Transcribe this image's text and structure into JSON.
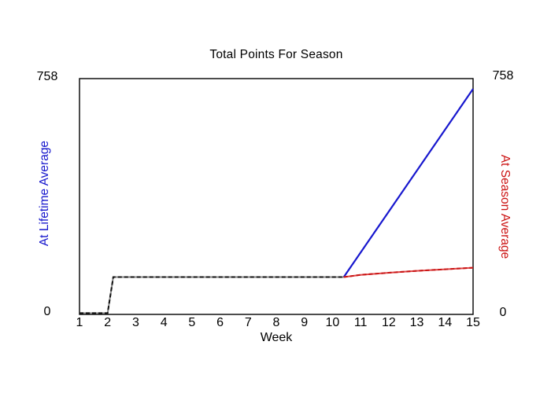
{
  "header": {
    "title": "Total Points For Season"
  },
  "axes": {
    "left": {
      "label": "At Lifetime Average",
      "color": "#1414CC",
      "top_tick": "758",
      "bottom_tick": "0"
    },
    "right": {
      "label": "At Season Average",
      "color": "#CC1414",
      "top_tick": "758",
      "bottom_tick": "0"
    },
    "x": {
      "label": "Week"
    }
  },
  "chart_data": {
    "type": "line",
    "title": "Total Points For Season",
    "xlabel": "Week",
    "ylabel_left": "At Lifetime Average",
    "ylabel_right": "At Season Average",
    "x_range": [
      1,
      15
    ],
    "ylim": [
      0,
      758
    ],
    "x_ticks": [
      1,
      2,
      3,
      4,
      5,
      6,
      7,
      8,
      9,
      10,
      11,
      12,
      13,
      14,
      15
    ],
    "y_ticks": [
      0,
      758
    ],
    "grid": false,
    "legend": "none",
    "frame_color": "#000000",
    "series": [
      {
        "id": "points-to-date",
        "label": null,
        "color": "#111111",
        "base_color": "#8A8A8A",
        "dash": "5 3",
        "width": 2,
        "points": [
          [
            1,
            4
          ],
          [
            2,
            4
          ],
          [
            2.2,
            120
          ],
          [
            10.4,
            120
          ]
        ]
      },
      {
        "id": "at-lifetime-average",
        "label": "At Lifetime Average",
        "color": "#1717CE",
        "base_color": null,
        "dash": null,
        "width": 2.2,
        "points": [
          [
            10.4,
            120
          ],
          [
            15,
            725
          ]
        ]
      },
      {
        "id": "at-season-average",
        "label": "At Season Average",
        "color": "#C81414",
        "base_color": "#E04545",
        "dash": "5 3",
        "width": 2,
        "points": [
          [
            10.4,
            120
          ],
          [
            11,
            127
          ],
          [
            12,
            134
          ],
          [
            13,
            140
          ],
          [
            14,
            145
          ],
          [
            15,
            150
          ]
        ]
      }
    ]
  }
}
